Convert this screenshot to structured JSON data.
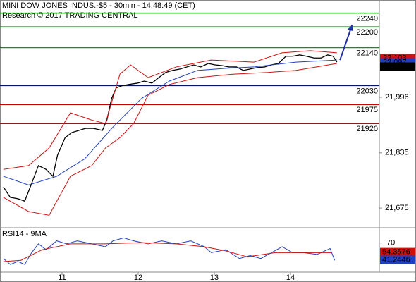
{
  "chart_data": {
    "type": "price",
    "title": "MINI DOW JONES INDUS.-$5 - 30min - 14:48:49 (CET)",
    "subtitle": "Research © 2017 TRADING CENTRAL",
    "xlim": [
      10.185,
      15.167
    ],
    "xticks": [
      11,
      12,
      13,
      14
    ],
    "ylim": [
      21620,
      22278
    ],
    "yticks": [
      {
        "value": 21996,
        "label": "21,996"
      },
      {
        "value": 21835,
        "label": "21,835"
      },
      {
        "value": 21675,
        "label": "21,675"
      }
    ],
    "levels": [
      22240,
      22200,
      22140,
      22030,
      21975,
      21920
    ],
    "level_colors": [
      "#1a8c1a",
      "#1a8c1a",
      "#1a8c1a",
      "#0000cc",
      "#cc0000",
      "#cc0000"
    ],
    "series": [
      {
        "color": "#000000",
        "x": [
          10.23,
          10.32,
          10.42,
          10.51,
          10.6,
          10.69,
          10.79,
          10.88,
          10.94,
          11.04,
          11.13,
          11.22,
          11.31,
          11.41,
          11.53,
          11.59,
          11.65,
          11.71,
          11.78,
          11.87,
          11.99,
          12.08,
          12.18,
          12.27,
          12.36,
          12.45,
          12.55,
          12.64,
          12.73,
          12.82,
          12.92,
          13.01,
          13.1,
          13.19,
          13.29,
          13.38,
          13.47,
          13.56,
          13.66,
          13.75,
          13.84,
          13.94,
          14.03,
          14.12,
          14.21,
          14.31,
          14.4,
          14.49,
          14.56,
          14.61
        ],
        "values": [
          21736,
          21706,
          21702,
          21695,
          21746,
          21798,
          21787,
          21767,
          21828,
          21879,
          21894,
          21900,
          21906,
          21906,
          21900,
          21931,
          21992,
          22023,
          22029,
          22033,
          22037,
          22043,
          22037,
          22053,
          22068,
          22074,
          22078,
          22084,
          22090,
          22084,
          22094,
          22090,
          22088,
          22084,
          22084,
          22074,
          22078,
          22082,
          22084,
          22090,
          22094,
          22115,
          22115,
          22119,
          22115,
          22110,
          22110,
          22119,
          22115,
          22098
        ]
      },
      {
        "color": "#1f3fbf",
        "x": [
          10.23,
          10.56,
          10.93,
          11.3,
          11.67,
          12.04,
          12.41,
          12.78,
          13.15,
          13.52,
          14.07,
          14.61
        ],
        "values": [
          21767,
          21742,
          21767,
          21818,
          21910,
          21992,
          22043,
          22074,
          22080,
          22084,
          22098,
          22104
        ]
      },
      {
        "color": "#d01010",
        "x": [
          10.23,
          10.56,
          10.83,
          11.11,
          11.39,
          11.57,
          11.76,
          11.9,
          12.13,
          12.5,
          12.96,
          13.52,
          13.89,
          14.26,
          14.61
        ],
        "values": [
          21787,
          21798,
          21849,
          21951,
          21930,
          21920,
          22063,
          22090,
          22053,
          22084,
          22104,
          22098,
          22125,
          22131,
          22125
        ]
      },
      {
        "color": "#d01010",
        "x": [
          10.23,
          10.56,
          10.83,
          11.11,
          11.39,
          11.57,
          11.76,
          11.94,
          12.13,
          12.41,
          12.78,
          13.24,
          13.7,
          14.07,
          14.61
        ],
        "values": [
          21706,
          21665,
          21654,
          21767,
          21798,
          21849,
          21879,
          21920,
          22002,
          22033,
          22053,
          22063,
          22068,
          22074,
          22094
        ]
      }
    ],
    "forecast": {
      "color": "#1f2f9f",
      "x": [
        14.65,
        14.81
      ],
      "values": [
        22104,
        22206
      ]
    },
    "last_values": [
      {
        "value": 22103,
        "label": "22,103",
        "color": "#d01010"
      },
      {
        "value": 22097,
        "label": "22,097",
        "color": "#1f3fbf"
      },
      {
        "value": 22091,
        "label": "22,091",
        "color": "#000000"
      }
    ],
    "rsi": {
      "title": "RSI14 - 9MA",
      "ylim": [
        20,
        95
      ],
      "yticks": [
        70
      ],
      "series": [
        {
          "color": "#1f3fbf",
          "x": [
            10.23,
            10.32,
            10.42,
            10.51,
            10.6,
            10.69,
            10.79,
            10.93,
            11.06,
            11.2,
            11.39,
            11.57,
            11.67,
            11.81,
            11.94,
            12.13,
            12.31,
            12.5,
            12.69,
            12.87,
            12.96,
            13.15,
            13.33,
            13.47,
            13.61,
            13.75,
            13.89,
            14.03,
            14.17,
            14.35,
            14.52,
            14.58
          ],
          "values": [
            43.3,
            33.2,
            38.2,
            33.2,
            53.4,
            68.6,
            58.5,
            73.7,
            68.6,
            73.7,
            68.6,
            63.6,
            73.7,
            78.8,
            73.7,
            68.6,
            73.7,
            68.6,
            73.7,
            63.6,
            53.4,
            58.5,
            43.3,
            48.4,
            43.3,
            53.4,
            63.6,
            53.4,
            53.4,
            50.4,
            60.5,
            40.3
          ]
        },
        {
          "color": "#d01010",
          "x": [
            10.23,
            10.46,
            10.74,
            11.11,
            11.57,
            12.04,
            12.5,
            12.87,
            13.15,
            13.43,
            13.8,
            14.17,
            14.54
          ],
          "values": [
            38.2,
            40.3,
            58.5,
            68.6,
            68.6,
            70.7,
            68.6,
            63.6,
            56.5,
            46.3,
            53.4,
            53.4,
            53.4
          ]
        }
      ],
      "last_values": [
        {
          "value": 54.3576,
          "color": "#d01010"
        },
        {
          "value": 41.2446,
          "color": "#1f3fbf"
        }
      ]
    }
  }
}
